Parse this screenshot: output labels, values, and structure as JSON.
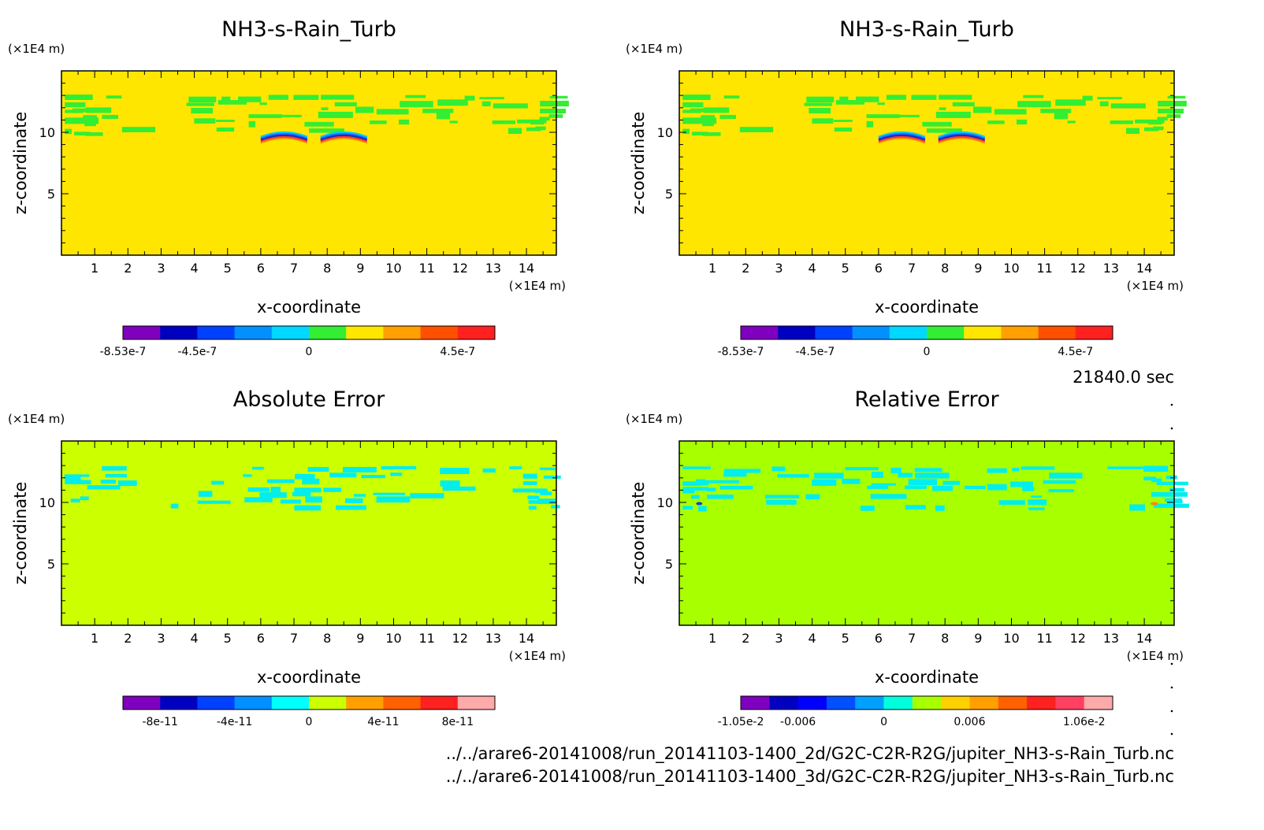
{
  "time_label": "21840.0 sec",
  "file_paths": [
    "../../arare6-20141008/run_20141103-1400_2d/G2C-C2R-R2G/jupiter_NH3-s-Rain_Turb.nc",
    "../../arare6-20141008/run_20141103-1400_3d/G2C-C2R-R2G/jupiter_NH3-s-Rain_Turb.nc"
  ],
  "colors": {
    "nh3_background": "#ffe600",
    "abs_background": "#ccff00",
    "rel_background": "#a8ff00",
    "cloud_green": "#33ee33",
    "cloud_cyan": "#00eeee",
    "anomaly_blue": "#1040e0",
    "anomaly_orange": "#ff8800"
  },
  "chart_data": [
    {
      "type": "heatmap",
      "title": "NH3-s-Rain_Turb",
      "xlabel": "x-coordinate",
      "ylabel": "z-coordinate",
      "x_unit": "(×1E4 m)",
      "y_unit": "(×1E4 m)",
      "xlim": [
        0,
        14.9
      ],
      "ylim": [
        0,
        15
      ],
      "x_ticks": [
        1,
        2,
        3,
        4,
        5,
        6,
        7,
        8,
        9,
        10,
        11,
        12,
        13,
        14
      ],
      "y_ticks": [
        5,
        10
      ],
      "colorbar": {
        "colors": [
          "#7f00bf",
          "#0000c0",
          "#0040ff",
          "#0090ff",
          "#00d8ff",
          "#33ee33",
          "#ffe600",
          "#ffa000",
          "#ff5000",
          "#ff2020"
        ],
        "labels": [
          "-8.53e-7",
          "-4.5e-7",
          "0",
          "4.5e-7"
        ],
        "label_bins": [
          0,
          2,
          5,
          9
        ]
      }
    },
    {
      "type": "heatmap",
      "title": "NH3-s-Rain_Turb",
      "xlabel": "x-coordinate",
      "ylabel": "z-coordinate",
      "x_unit": "(×1E4 m)",
      "y_unit": "(×1E4 m)",
      "xlim": [
        0,
        14.9
      ],
      "ylim": [
        0,
        15
      ],
      "x_ticks": [
        1,
        2,
        3,
        4,
        5,
        6,
        7,
        8,
        9,
        10,
        11,
        12,
        13,
        14
      ],
      "y_ticks": [
        5,
        10
      ],
      "colorbar": {
        "colors": [
          "#7f00bf",
          "#0000c0",
          "#0040ff",
          "#0090ff",
          "#00d8ff",
          "#33ee33",
          "#ffe600",
          "#ffa000",
          "#ff5000",
          "#ff2020"
        ],
        "labels": [
          "-8.53e-7",
          "-4.5e-7",
          "0",
          "4.5e-7"
        ],
        "label_bins": [
          0,
          2,
          5,
          9
        ]
      }
    },
    {
      "type": "heatmap",
      "title": "Absolute Error",
      "xlabel": "x-coordinate",
      "ylabel": "z-coordinate",
      "x_unit": "(×1E4 m)",
      "y_unit": "(×1E4 m)",
      "xlim": [
        0,
        14.9
      ],
      "ylim": [
        0,
        15
      ],
      "x_ticks": [
        1,
        2,
        3,
        4,
        5,
        6,
        7,
        8,
        9,
        10,
        11,
        12,
        13,
        14
      ],
      "y_ticks": [
        5,
        10
      ],
      "colorbar": {
        "colors": [
          "#7f00bf",
          "#0000c0",
          "#0040ff",
          "#0090ff",
          "#00ffff",
          "#ccff00",
          "#ffa000",
          "#ff6000",
          "#ff2020",
          "#ffaaaa"
        ],
        "labels": [
          "-8e-11",
          "-4e-11",
          "0",
          "4e-11",
          "8e-11"
        ],
        "label_bins": [
          1,
          3,
          5,
          7,
          9
        ]
      }
    },
    {
      "type": "heatmap",
      "title": "Relative Error",
      "xlabel": "x-coordinate",
      "ylabel": "z-coordinate",
      "x_unit": "(×1E4 m)",
      "y_unit": "(×1E4 m)",
      "xlim": [
        0,
        14.9
      ],
      "ylim": [
        0,
        15
      ],
      "x_ticks": [
        1,
        2,
        3,
        4,
        5,
        6,
        7,
        8,
        9,
        10,
        11,
        12,
        13,
        14
      ],
      "y_ticks": [
        5,
        10
      ],
      "colorbar": {
        "colors": [
          "#7f00bf",
          "#0000c0",
          "#0000ff",
          "#0050ff",
          "#00a0ff",
          "#00ffdd",
          "#a8ff00",
          "#ffd000",
          "#ffa000",
          "#ff6000",
          "#ff2020",
          "#ff4060",
          "#ffaaaa"
        ],
        "labels": [
          "-1.05e-2",
          "-0.006",
          "0",
          "0.006",
          "1.06e-2"
        ],
        "label_bins": [
          0,
          2,
          5,
          8,
          12
        ]
      }
    }
  ]
}
